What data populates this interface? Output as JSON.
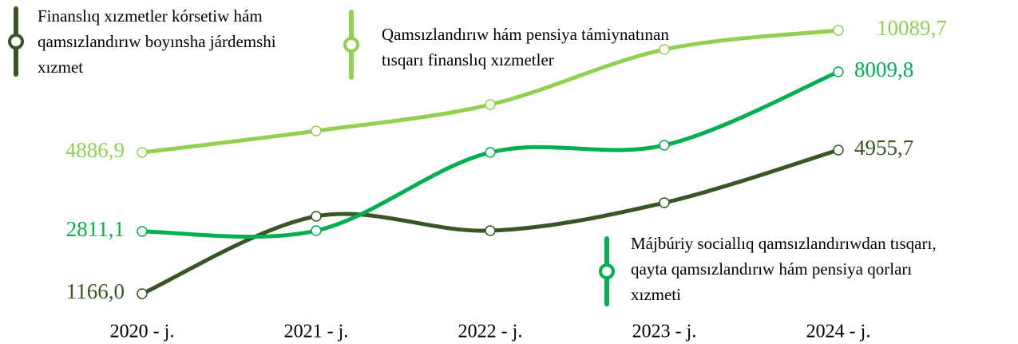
{
  "chart_data": {
    "type": "line",
    "categories": [
      "2020 - j.",
      "2021 - j.",
      "2022 - j.",
      "2023 - j.",
      "2024 - j."
    ],
    "series": [
      {
        "name": "Finanslıq xızmetler kórsetiw hám qamsızlandırıw boyınsha járdemshi xızmet",
        "color": "#375623",
        "values": [
          1166.0,
          3208,
          2829,
          3566,
          4955.7
        ],
        "value_labels": [
          "1166,0",
          null,
          null,
          null,
          "4955,7"
        ]
      },
      {
        "name": "Qamsızlandırıw hám pensiya támiynatınan tısqarı finanslıq xızmetler",
        "color": "#92d050",
        "values": [
          4886.9,
          5805,
          6927,
          9273,
          10089.7
        ],
        "value_labels": [
          "4886,9",
          null,
          null,
          null,
          "10089,7"
        ]
      },
      {
        "name": "Májbúriy sociallıq qamsızlandırıwdan tısqarı, qayta qamsızlandırıw hám pensiya qorları xızmeti",
        "color": "#00b050",
        "values": [
          2811.1,
          2837,
          5385,
          5619,
          8009.8
        ],
        "value_labels": [
          "2811,1",
          null,
          null,
          null,
          "8009,8"
        ]
      }
    ]
  }
}
